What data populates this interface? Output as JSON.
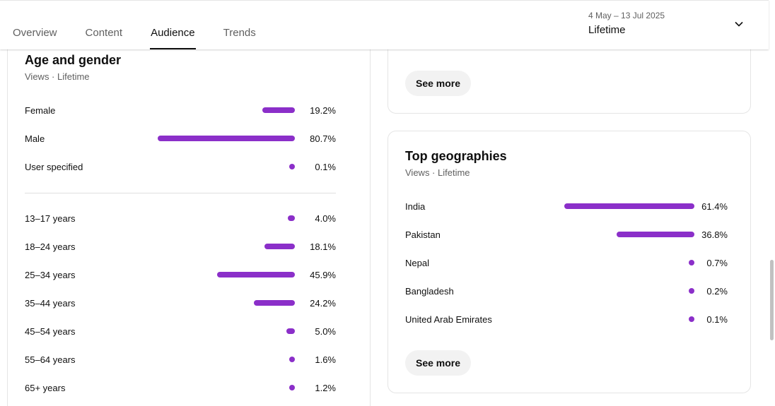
{
  "tabs": [
    {
      "label": "Overview",
      "active": false
    },
    {
      "label": "Content",
      "active": false
    },
    {
      "label": "Audience",
      "active": true
    },
    {
      "label": "Trends",
      "active": false
    }
  ],
  "date_range": {
    "dates": "4 May – 13 Jul 2025",
    "label": "Lifetime"
  },
  "colors": {
    "bar": "#8b2fc9"
  },
  "age_gender": {
    "title": "Age and gender",
    "subtitle": "Views · Lifetime",
    "gender": [
      {
        "label": "Female",
        "value": "19.2%",
        "pct": 19.2
      },
      {
        "label": "Male",
        "value": "80.7%",
        "pct": 80.7
      },
      {
        "label": "User specified",
        "value": "0.1%",
        "pct": 0.1
      }
    ],
    "age": [
      {
        "label": "13–17 years",
        "value": "4.0%",
        "pct": 4.0
      },
      {
        "label": "18–24 years",
        "value": "18.1%",
        "pct": 18.1
      },
      {
        "label": "25–34 years",
        "value": "45.9%",
        "pct": 45.9
      },
      {
        "label": "35–44 years",
        "value": "24.2%",
        "pct": 24.2
      },
      {
        "label": "45–54 years",
        "value": "5.0%",
        "pct": 5.0
      },
      {
        "label": "55–64 years",
        "value": "1.6%",
        "pct": 1.6
      },
      {
        "label": "65+ years",
        "value": "1.2%",
        "pct": 1.2
      }
    ]
  },
  "top_card": {
    "see_more": "See more"
  },
  "geographies": {
    "title": "Top geographies",
    "subtitle": "Views · Lifetime",
    "rows": [
      {
        "label": "India",
        "value": "61.4%",
        "pct": 61.4
      },
      {
        "label": "Pakistan",
        "value": "36.8%",
        "pct": 36.8
      },
      {
        "label": "Nepal",
        "value": "0.7%",
        "pct": 0.7
      },
      {
        "label": "Bangladesh",
        "value": "0.2%",
        "pct": 0.2
      },
      {
        "label": "United Arab Emirates",
        "value": "0.1%",
        "pct": 0.1
      }
    ],
    "see_more": "See more"
  }
}
